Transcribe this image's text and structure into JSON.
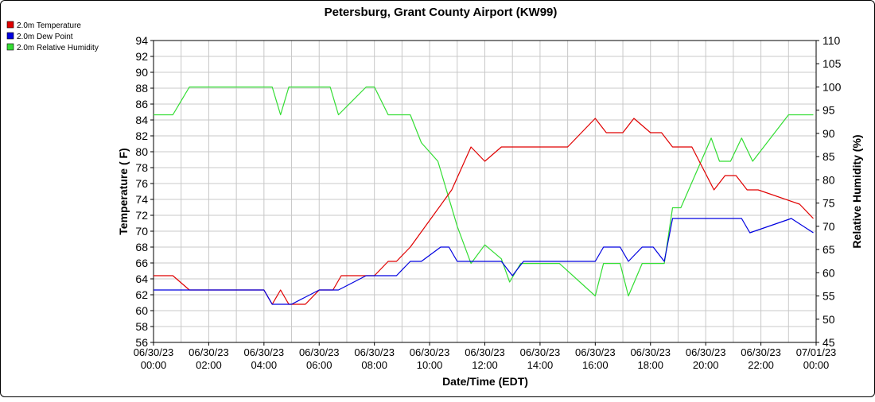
{
  "chart_data": {
    "type": "line",
    "title": "Petersburg, Grant County Airport (KW99)",
    "xlabel": "Date/Time (EDT)",
    "ylabel": "Temperature ( F)",
    "y2label": "Relative Humidity (%)",
    "xlim": [
      0,
      24
    ],
    "ylim": [
      56,
      94
    ],
    "y2lim": [
      45,
      110
    ],
    "grid": true,
    "legend_position": "top-left",
    "x_ticks": [
      {
        "hour": 0,
        "date": "06/30/23",
        "time": "00:00"
      },
      {
        "hour": 2,
        "date": "06/30/23",
        "time": "02:00"
      },
      {
        "hour": 4,
        "date": "06/30/23",
        "time": "04:00"
      },
      {
        "hour": 6,
        "date": "06/30/23",
        "time": "06:00"
      },
      {
        "hour": 8,
        "date": "06/30/23",
        "time": "08:00"
      },
      {
        "hour": 10,
        "date": "06/30/23",
        "time": "10:00"
      },
      {
        "hour": 12,
        "date": "06/30/23",
        "time": "12:00"
      },
      {
        "hour": 14,
        "date": "06/30/23",
        "time": "14:00"
      },
      {
        "hour": 16,
        "date": "06/30/23",
        "time": "16:00"
      },
      {
        "hour": 18,
        "date": "06/30/23",
        "time": "18:00"
      },
      {
        "hour": 20,
        "date": "06/30/23",
        "time": "20:00"
      },
      {
        "hour": 22,
        "date": "06/30/23",
        "time": "22:00"
      },
      {
        "hour": 24,
        "date": "07/01/23",
        "time": "00:00"
      }
    ],
    "y_ticks": [
      56,
      58,
      60,
      62,
      64,
      66,
      68,
      70,
      72,
      74,
      76,
      78,
      80,
      82,
      84,
      86,
      88,
      90,
      92,
      94
    ],
    "y2_ticks": [
      45,
      50,
      55,
      60,
      65,
      70,
      75,
      80,
      85,
      90,
      95,
      100,
      105,
      110
    ],
    "series": [
      {
        "name": "2.0m Temperature",
        "color": "#e00000",
        "axis": "left",
        "points": [
          [
            0,
            64.4
          ],
          [
            0.7,
            64.4
          ],
          [
            1.3,
            62.6
          ],
          [
            4,
            62.6
          ],
          [
            4.3,
            60.8
          ],
          [
            4.6,
            62.6
          ],
          [
            4.9,
            60.8
          ],
          [
            5.5,
            60.8
          ],
          [
            6,
            62.6
          ],
          [
            6.5,
            62.6
          ],
          [
            6.8,
            64.4
          ],
          [
            8,
            64.4
          ],
          [
            8.5,
            66.2
          ],
          [
            8.8,
            66.2
          ],
          [
            9.3,
            68
          ],
          [
            10.8,
            75.2
          ],
          [
            11.5,
            80.6
          ],
          [
            12,
            78.8
          ],
          [
            12.6,
            80.6
          ],
          [
            15,
            80.6
          ],
          [
            16,
            84.2
          ],
          [
            16.4,
            82.4
          ],
          [
            17,
            82.4
          ],
          [
            17.4,
            84.2
          ],
          [
            18,
            82.4
          ],
          [
            18.4,
            82.4
          ],
          [
            18.8,
            80.6
          ],
          [
            19.5,
            80.6
          ],
          [
            20.3,
            75.2
          ],
          [
            20.7,
            77
          ],
          [
            21.1,
            77
          ],
          [
            21.5,
            75.2
          ],
          [
            21.9,
            75.2
          ],
          [
            23.4,
            73.4
          ],
          [
            23.9,
            71.6
          ]
        ]
      },
      {
        "name": "2.0m Dew Point",
        "color": "#0000e0",
        "axis": "left",
        "points": [
          [
            0,
            62.6
          ],
          [
            4,
            62.6
          ],
          [
            4.3,
            60.8
          ],
          [
            5,
            60.8
          ],
          [
            6,
            62.6
          ],
          [
            6.7,
            62.6
          ],
          [
            7.7,
            64.4
          ],
          [
            8.8,
            64.4
          ],
          [
            9.3,
            66.2
          ],
          [
            9.7,
            66.2
          ],
          [
            10.4,
            68
          ],
          [
            10.7,
            68
          ],
          [
            11,
            66.2
          ],
          [
            12.6,
            66.2
          ],
          [
            13,
            64.4
          ],
          [
            13.4,
            66.2
          ],
          [
            16,
            66.2
          ],
          [
            16.3,
            68
          ],
          [
            16.9,
            68
          ],
          [
            17.2,
            66.2
          ],
          [
            17.7,
            68
          ],
          [
            18.1,
            68
          ],
          [
            18.5,
            66.2
          ],
          [
            18.8,
            71.6
          ],
          [
            21.3,
            71.6
          ],
          [
            21.6,
            69.8
          ],
          [
            23.1,
            71.6
          ],
          [
            23.9,
            69.8
          ]
        ]
      },
      {
        "name": "2.0m Relative Humidity",
        "color": "#33dd33",
        "axis": "right",
        "points": [
          [
            0,
            94
          ],
          [
            0.7,
            94
          ],
          [
            1.3,
            100
          ],
          [
            4.3,
            100
          ],
          [
            4.6,
            94
          ],
          [
            4.9,
            100
          ],
          [
            6.4,
            100
          ],
          [
            6.7,
            94
          ],
          [
            7.7,
            100
          ],
          [
            8,
            100
          ],
          [
            8.5,
            94
          ],
          [
            9.3,
            94
          ],
          [
            9.7,
            88
          ],
          [
            10.3,
            84
          ],
          [
            11,
            70
          ],
          [
            11.5,
            62
          ],
          [
            12,
            66
          ],
          [
            12.6,
            63
          ],
          [
            12.9,
            58
          ],
          [
            13.3,
            62
          ],
          [
            14.7,
            62
          ],
          [
            16,
            55
          ],
          [
            16.3,
            62
          ],
          [
            16.9,
            62
          ],
          [
            17.2,
            55
          ],
          [
            17.7,
            62
          ],
          [
            18.2,
            62
          ],
          [
            18.5,
            62
          ],
          [
            18.8,
            74
          ],
          [
            19.1,
            74
          ],
          [
            20.2,
            89
          ],
          [
            20.5,
            84
          ],
          [
            20.9,
            84
          ],
          [
            21.3,
            89
          ],
          [
            21.7,
            84
          ],
          [
            23,
            94
          ],
          [
            23.9,
            94
          ]
        ]
      }
    ]
  }
}
